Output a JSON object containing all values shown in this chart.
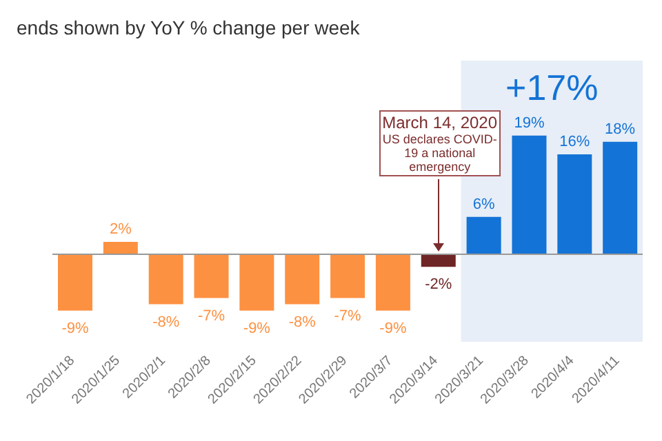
{
  "chart_data": {
    "type": "bar",
    "title": "ends shown by YoY % change per week",
    "categories": [
      "2020/1/18",
      "2020/1/25",
      "2020/2/1",
      "2020/2/8",
      "2020/2/15",
      "2020/2/22",
      "2020/2/29",
      "2020/3/7",
      "2020/3/14",
      "2020/3/21",
      "2020/3/28",
      "2020/4/4",
      "2020/4/11"
    ],
    "values": [
      -9,
      2,
      -8,
      -7,
      -9,
      -8,
      -7,
      -9,
      -2,
      6,
      19,
      16,
      18
    ],
    "value_labels": [
      "-9%",
      "2%",
      "-8%",
      "-7%",
      "-9%",
      "-8%",
      "-7%",
      "-9%",
      "-2%",
      "6%",
      "19%",
      "16%",
      "18%"
    ],
    "colors": [
      "#fd9142",
      "#fd9142",
      "#fd9142",
      "#fd9142",
      "#fd9142",
      "#fd9142",
      "#fd9142",
      "#fd9142",
      "#6e2525",
      "#1473d6",
      "#1473d6",
      "#1473d6",
      "#1473d6"
    ],
    "bands": [
      {
        "axis": "x",
        "from": "2020/3/21",
        "to": "2020/4/11",
        "label": "+17%",
        "color": "#e7eef7"
      }
    ],
    "annotations": [
      {
        "text": "March 14, 2020\nUS declares COVID-19  a national emergency",
        "x": "2020/3/14",
        "y": 0
      }
    ]
  }
}
